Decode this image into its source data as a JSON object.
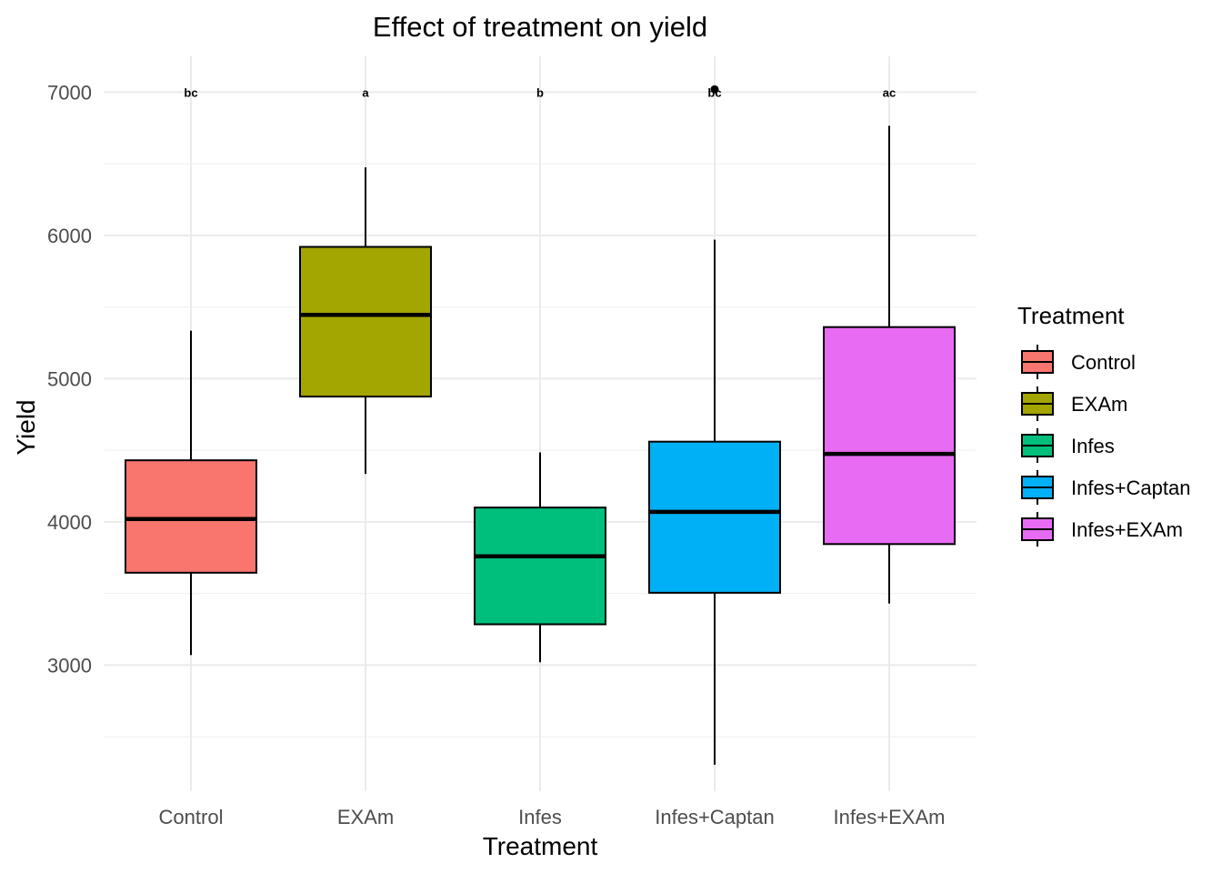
{
  "chart_data": {
    "type": "boxplot",
    "title": "Effect of treatment on yield",
    "xlabel": "Treatment",
    "ylabel": "Yield",
    "ylim": [
      2120,
      7250
    ],
    "yticks": [
      3000,
      4000,
      5000,
      6000,
      7000
    ],
    "grid": true,
    "legend": {
      "title": "Treatment",
      "position": "right"
    },
    "categories": [
      "Control",
      "EXAm",
      "Infes",
      "Infes+Captan",
      "Infes+EXAm"
    ],
    "colors": [
      "#F8766D",
      "#A3A500",
      "#00BF7D",
      "#00B0F6",
      "#E76BF3"
    ],
    "boxes": [
      {
        "category": "Control",
        "min": 3070,
        "q1": 3645,
        "median": 4020,
        "q3": 4430,
        "max": 5335
      },
      {
        "category": "EXAm",
        "min": 4335,
        "q1": 4875,
        "median": 5445,
        "q3": 5920,
        "max": 6475
      },
      {
        "category": "Infes",
        "min": 3020,
        "q1": 3285,
        "median": 3760,
        "q3": 4100,
        "max": 4485
      },
      {
        "category": "Infes+Captan",
        "min": 2305,
        "q1": 3505,
        "median": 4070,
        "q3": 4560,
        "max": 5970
      },
      {
        "category": "Infes+EXAm",
        "min": 3430,
        "q1": 3845,
        "median": 4475,
        "q3": 5360,
        "max": 6765
      }
    ],
    "letters": [
      "bc",
      "a",
      "b",
      "bc",
      "ac"
    ],
    "letters_y": 7000,
    "outliers": [
      {
        "category": "Infes+Captan",
        "y": 7020
      }
    ]
  }
}
